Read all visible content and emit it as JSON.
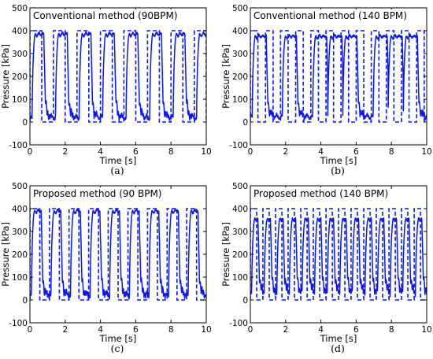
{
  "colors": {
    "line": "#0a14ff",
    "axis": "#000000"
  },
  "chart_data": [
    {
      "type": "line",
      "title": "Conventional method (90BPM)",
      "caption": "(a)",
      "xlabel": "Time [s]",
      "ylabel": "Pressure [kPa]",
      "xlim": [
        0,
        10
      ],
      "ylim": [
        -100,
        500
      ],
      "xticks": [
        "0",
        "2",
        "4",
        "6",
        "8",
        "10"
      ],
      "yticks": [
        "-100",
        "0",
        "100",
        "200",
        "300",
        "400",
        "500"
      ],
      "grid": false,
      "reference": {
        "style": "dashed",
        "low": 0,
        "high": 400,
        "rise_times": [
          0.0,
          1.33,
          2.67,
          4.0,
          5.33,
          6.67,
          8.0,
          9.33
        ],
        "on_duration": 0.67
      },
      "measured": {
        "style": "solid",
        "low": 15,
        "high": 385,
        "lag": 0.12,
        "rise_times": [
          0.0,
          1.33,
          2.67,
          4.0,
          5.33,
          6.67,
          8.0,
          9.33
        ],
        "on_duration": 0.67
      }
    },
    {
      "type": "line",
      "title": "Conventional method (140 BPM)",
      "caption": "(b)",
      "xlabel": "Time [s]",
      "ylabel": "Pressure [kPa]",
      "xlim": [
        0,
        10
      ],
      "ylim": [
        -100,
        500
      ],
      "xticks": [
        "0",
        "2",
        "4",
        "6",
        "8",
        "10"
      ],
      "yticks": [
        "-100",
        "0",
        "100",
        "200",
        "300",
        "400",
        "500"
      ],
      "grid": false,
      "reference": {
        "style": "dashed",
        "low": 0,
        "high": 400,
        "rise_times": [
          0.0,
          0.86,
          1.71,
          2.57,
          3.43,
          4.29,
          5.14,
          6.0,
          6.86,
          7.71,
          8.57,
          9.43
        ],
        "on_duration": 0.43
      },
      "measured": {
        "style": "solid",
        "low": 20,
        "high": 375,
        "lag": 0.1,
        "rise_times": [
          0.0,
          1.71,
          3.43,
          4.29,
          5.14,
          6.86,
          7.71,
          8.57
        ],
        "on_duration": 0.8
      }
    },
    {
      "type": "line",
      "title": "Proposed method (90 BPM)",
      "caption": "(c)",
      "xlabel": "Time [s]",
      "ylabel": "Pressure [kPa]",
      "xlim": [
        0,
        10
      ],
      "ylim": [
        -100,
        500
      ],
      "xticks": [
        "0",
        "2",
        "4",
        "6",
        "8",
        "10"
      ],
      "yticks": [
        "-100",
        "0",
        "100",
        "200",
        "300",
        "400",
        "500"
      ],
      "grid": false,
      "reference": {
        "style": "dashed",
        "low": 0,
        "high": 400,
        "rise_times": [
          0.0,
          1.11,
          2.22,
          3.33,
          4.44,
          5.56,
          6.67,
          7.78,
          8.89
        ],
        "on_duration": 0.56
      },
      "measured": {
        "style": "solid",
        "low": 15,
        "high": 390,
        "lag": 0.08,
        "rise_times": [
          0.0,
          1.11,
          2.22,
          3.33,
          4.44,
          5.56,
          6.67,
          7.78,
          8.89
        ],
        "on_duration": 0.56
      }
    },
    {
      "type": "line",
      "title": "Proposed method (140 BPM)",
      "caption": "(d)",
      "xlabel": "Time [s]",
      "ylabel": "Pressure [kPa]",
      "xlim": [
        0,
        10
      ],
      "ylim": [
        -100,
        500
      ],
      "xticks": [
        "0",
        "2",
        "4",
        "6",
        "8",
        "10"
      ],
      "yticks": [
        "-100",
        "0",
        "100",
        "200",
        "300",
        "400",
        "500"
      ],
      "grid": false,
      "reference": {
        "style": "dashed",
        "low": 0,
        "high": 400,
        "rise_times": [
          0.0,
          0.71,
          1.43,
          2.14,
          2.86,
          3.57,
          4.29,
          5.0,
          5.71,
          6.43,
          7.14,
          7.86,
          8.57,
          9.29
        ],
        "on_duration": 0.36
      },
      "measured": {
        "style": "solid",
        "low": 25,
        "high": 355,
        "lag": 0.07,
        "rise_times": [
          0.0,
          0.71,
          1.43,
          2.14,
          2.86,
          3.57,
          4.29,
          5.0,
          5.71,
          6.43,
          7.14,
          7.86,
          8.57,
          9.29
        ],
        "on_duration": 0.36
      }
    }
  ]
}
